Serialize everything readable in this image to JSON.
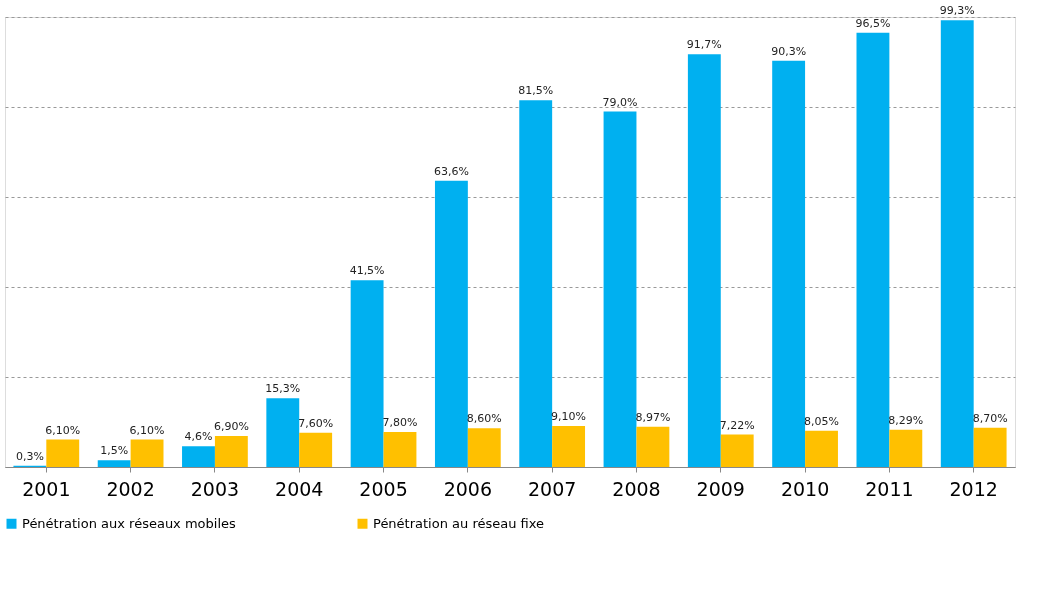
{
  "chart_data": {
    "type": "bar",
    "categories": [
      "2001",
      "2002",
      "2003",
      "2004",
      "2005",
      "2006",
      "2007",
      "2008",
      "2009",
      "2010",
      "2011",
      "2012"
    ],
    "series": [
      {
        "name": "Pénétration aux réseaux mobiles",
        "color": "#00b0f0",
        "values": [
          0.3,
          1.5,
          4.6,
          15.3,
          41.5,
          63.6,
          81.5,
          79.0,
          91.7,
          90.3,
          96.5,
          99.3
        ],
        "value_labels": [
          "0,3%",
          "1,5%",
          "4,6%",
          "15,3%",
          "41,5%",
          "63,6%",
          "81,5%",
          "79,0%",
          "91,7%",
          "90,3%",
          "96,5%",
          "99,3%"
        ]
      },
      {
        "name": "Pénétration au réseau fixe",
        "color": "#ffc000",
        "values": [
          6.1,
          6.1,
          6.9,
          7.6,
          7.8,
          8.6,
          9.1,
          8.97,
          7.22,
          8.05,
          8.29,
          8.7
        ],
        "value_labels": [
          "6,10%",
          "6,10%",
          "6,90%",
          "7,60%",
          "7,80%",
          "8,60%",
          "9,10%",
          "8,97%",
          "7,22%",
          "8,05%",
          "8,29%",
          "8,70%"
        ]
      }
    ],
    "ylim": [
      0,
      100
    ],
    "yticks": [
      {
        "value": 0,
        "label": null
      },
      {
        "value": 20,
        "label": null
      },
      {
        "value": 40,
        "label": null
      },
      {
        "value": 60,
        "label": null
      },
      {
        "value": 80,
        "label": null
      },
      {
        "value": 100,
        "label": null
      }
    ],
    "tick_labels": "x",
    "grid": "y",
    "legend": "bottom"
  }
}
